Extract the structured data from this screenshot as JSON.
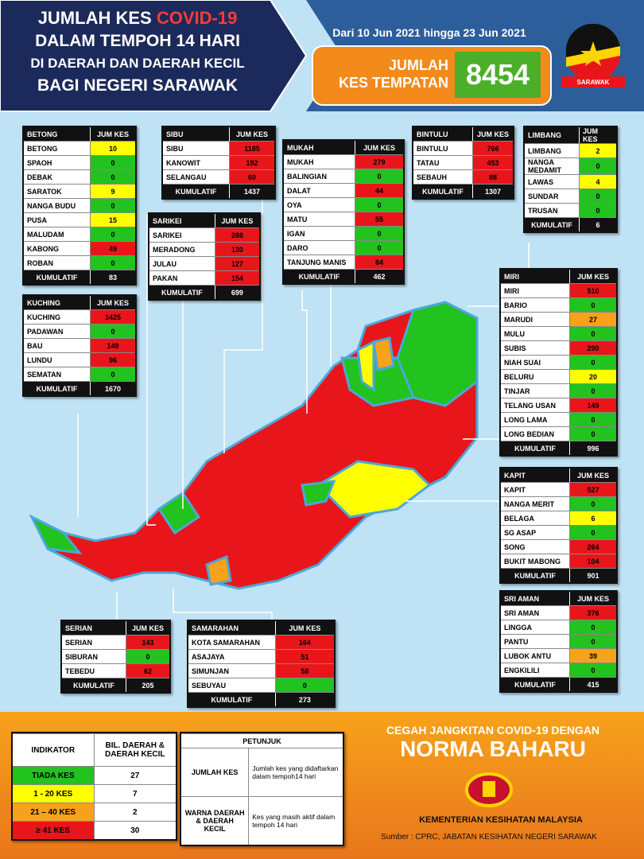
{
  "header": {
    "title_lines": [
      "JUMLAH KES",
      "COVID-19",
      "DALAM TEMPOH 14 HARI",
      "DI DAERAH DAN DAERAH KECIL",
      "BAGI NEGERI SARAWAK"
    ],
    "date_range": "Dari 10 Jun 2021 hingga 23 Jun 2021",
    "total_label_lines": [
      "JUMLAH",
      "KES TEMPATAN"
    ],
    "total": 8454,
    "logo_text": "SARAWAK"
  },
  "divisions": [
    {
      "name": "BETONG",
      "column": "JUM KES",
      "rows": [
        {
          "name": "BETONG",
          "cases": 10,
          "color": "#ffff00"
        },
        {
          "name": "SPAOH",
          "cases": 0,
          "color": "#22c21f"
        },
        {
          "name": "DEBAK",
          "cases": 0,
          "color": "#22c21f"
        },
        {
          "name": "SARATOK",
          "cases": 9,
          "color": "#ffff00"
        },
        {
          "name": "NANGA BUDU",
          "cases": 0,
          "color": "#22c21f"
        },
        {
          "name": "PUSA",
          "cases": 15,
          "color": "#ffff00"
        },
        {
          "name": "MALUDAM",
          "cases": 0,
          "color": "#22c21f"
        },
        {
          "name": "KABONG",
          "cases": 49,
          "color": "#e8161b"
        },
        {
          "name": "ROBAN",
          "cases": 0,
          "color": "#22c21f"
        }
      ],
      "total_label": "KUMULATIF",
      "total": 83
    },
    {
      "name": "SIBU",
      "column": "JUM KES",
      "rows": [
        {
          "name": "SIBU",
          "cases": 1185,
          "color": "#e8161b"
        },
        {
          "name": "KANOWIT",
          "cases": 192,
          "color": "#e8161b"
        },
        {
          "name": "SELANGAU",
          "cases": 60,
          "color": "#e8161b"
        }
      ],
      "total_label": "KUMULATIF",
      "total": 1437
    },
    {
      "name": "MUKAH",
      "column": "JUM KES",
      "rows": [
        {
          "name": "MUKAH",
          "cases": 279,
          "color": "#e8161b"
        },
        {
          "name": "BALINGIAN",
          "cases": 0,
          "color": "#22c21f"
        },
        {
          "name": "DALAT",
          "cases": 44,
          "color": "#e8161b"
        },
        {
          "name": "OYA",
          "cases": 0,
          "color": "#22c21f"
        },
        {
          "name": "MATU",
          "cases": 55,
          "color": "#e8161b"
        },
        {
          "name": "IGAN",
          "cases": 0,
          "color": "#22c21f"
        },
        {
          "name": "DARO",
          "cases": 0,
          "color": "#22c21f"
        },
        {
          "name": "TANJUNG MANIS",
          "cases": 84,
          "color": "#e8161b"
        }
      ],
      "total_label": "KUMULATIF",
      "total": 462
    },
    {
      "name": "BINTULU",
      "column": "JUM KES",
      "rows": [
        {
          "name": "BINTULU",
          "cases": 766,
          "color": "#e8161b"
        },
        {
          "name": "TATAU",
          "cases": 453,
          "color": "#e8161b"
        },
        {
          "name": "SEBAUH",
          "cases": 88,
          "color": "#e8161b"
        }
      ],
      "total_label": "KUMULATIF",
      "total": 1307
    },
    {
      "name": "LIMBANG",
      "column": "JUM KES",
      "rows": [
        {
          "name": "LIMBANG",
          "cases": 2,
          "color": "#ffff00"
        },
        {
          "name": "NANGA MEDAMIT",
          "cases": 0,
          "color": "#22c21f"
        },
        {
          "name": "LAWAS",
          "cases": 4,
          "color": "#ffff00"
        },
        {
          "name": "SUNDAR",
          "cases": 0,
          "color": "#22c21f"
        },
        {
          "name": "TRUSAN",
          "cases": 0,
          "color": "#22c21f"
        }
      ],
      "total_label": "KUMULATIF",
      "total": 6
    },
    {
      "name": "SARIKEI",
      "column": "JUM KES",
      "rows": [
        {
          "name": "SARIKEI",
          "cases": 288,
          "color": "#e8161b"
        },
        {
          "name": "MERADONG",
          "cases": 130,
          "color": "#e8161b"
        },
        {
          "name": "JULAU",
          "cases": 127,
          "color": "#e8161b"
        },
        {
          "name": "PAKAN",
          "cases": 154,
          "color": "#e8161b"
        }
      ],
      "total_label": "KUMULATIF",
      "total": 699
    },
    {
      "name": "KUCHING",
      "column": "JUM KES",
      "rows": [
        {
          "name": "KUCHING",
          "cases": 1425,
          "color": "#e8161b"
        },
        {
          "name": "PADAWAN",
          "cases": 0,
          "color": "#22c21f"
        },
        {
          "name": "BAU",
          "cases": 149,
          "color": "#e8161b"
        },
        {
          "name": "LUNDU",
          "cases": 96,
          "color": "#e8161b"
        },
        {
          "name": "SEMATAN",
          "cases": 0,
          "color": "#22c21f"
        }
      ],
      "total_label": "KUMULATIF",
      "total": 1670
    },
    {
      "name": "MIRI",
      "column": "JUM KES",
      "rows": [
        {
          "name": "MIRI",
          "cases": 510,
          "color": "#e8161b"
        },
        {
          "name": "BARIO",
          "cases": 0,
          "color": "#22c21f"
        },
        {
          "name": "MARUDI",
          "cases": 27,
          "color": "#f7a21b"
        },
        {
          "name": "MULU",
          "cases": 0,
          "color": "#22c21f"
        },
        {
          "name": "SUBIS",
          "cases": 290,
          "color": "#e8161b"
        },
        {
          "name": "NIAH SUAI",
          "cases": 0,
          "color": "#22c21f"
        },
        {
          "name": "BELURU",
          "cases": 20,
          "color": "#ffff00"
        },
        {
          "name": "TINJAR",
          "cases": 0,
          "color": "#22c21f"
        },
        {
          "name": "TELANG USAN",
          "cases": 149,
          "color": "#e8161b"
        },
        {
          "name": "LONG LAMA",
          "cases": 0,
          "color": "#22c21f"
        },
        {
          "name": "LONG BEDIAN",
          "cases": 0,
          "color": "#22c21f"
        }
      ],
      "total_label": "KUMULATIF",
      "total": 996
    },
    {
      "name": "KAPIT",
      "column": "JUM KES",
      "rows": [
        {
          "name": "KAPIT",
          "cases": 527,
          "color": "#e8161b"
        },
        {
          "name": "NANGA MERIT",
          "cases": 0,
          "color": "#22c21f"
        },
        {
          "name": "BELAGA",
          "cases": 6,
          "color": "#ffff00"
        },
        {
          "name": "SG ASAP",
          "cases": 0,
          "color": "#22c21f"
        },
        {
          "name": "SONG",
          "cases": 264,
          "color": "#e8161b"
        },
        {
          "name": "BUKIT MABONG",
          "cases": 104,
          "color": "#e8161b"
        }
      ],
      "total_label": "KUMULATIF",
      "total": 901
    },
    {
      "name": "SRI AMAN",
      "column": "JUM KES",
      "rows": [
        {
          "name": "SRI AMAN",
          "cases": 376,
          "color": "#e8161b"
        },
        {
          "name": "LINGGA",
          "cases": 0,
          "color": "#22c21f"
        },
        {
          "name": "PANTU",
          "cases": 0,
          "color": "#22c21f"
        },
        {
          "name": "LUBOK ANTU",
          "cases": 39,
          "color": "#f7a21b"
        },
        {
          "name": "ENGKILILI",
          "cases": 0,
          "color": "#22c21f"
        }
      ],
      "total_label": "KUMULATIF",
      "total": 415
    },
    {
      "name": "SERIAN",
      "column": "JUM KES",
      "rows": [
        {
          "name": "SERIAN",
          "cases": 143,
          "color": "#e8161b"
        },
        {
          "name": "SIBURAN",
          "cases": 0,
          "color": "#22c21f"
        },
        {
          "name": "TEBEDU",
          "cases": 62,
          "color": "#e8161b"
        }
      ],
      "total_label": "KUMULATIF",
      "total": 205
    },
    {
      "name": "SAMARAHAN",
      "column": "JUM KES",
      "rows": [
        {
          "name": "KOTA SAMARAHAN",
          "cases": 164,
          "color": "#e8161b"
        },
        {
          "name": "ASAJAYA",
          "cases": 51,
          "color": "#e8161b"
        },
        {
          "name": "SIMUNJAN",
          "cases": 58,
          "color": "#e8161b"
        },
        {
          "name": "SEBUYAU",
          "cases": 0,
          "color": "#22c21f"
        }
      ],
      "total_label": "KUMULATIF",
      "total": 273
    }
  ],
  "indicator": {
    "headers": [
      "INDIKATOR",
      "BIL. DAERAH & DAERAH KECIL"
    ],
    "rows": [
      {
        "label": "TIADA KES",
        "count": 27,
        "color": "#22c21f"
      },
      {
        "label": "1 - 20 KES",
        "count": 7,
        "color": "#ffff00"
      },
      {
        "label": "21 – 40 KES",
        "count": 2,
        "color": "#f7a21b"
      },
      {
        "label": "≥ 41 KES",
        "count": 30,
        "color": "#e8161b"
      }
    ]
  },
  "legend": {
    "title": "PETUNJUK",
    "rows": [
      {
        "term": "JUMLAH KES",
        "description": "Jumlah kes yang didaftarkan dalam tempoh14 hari"
      },
      {
        "term": "WARNA DAERAH & DAERAH KECIL",
        "description": "Kes yang masih aktif dalam tempoh 14 hari"
      }
    ]
  },
  "footer": {
    "slogan_lines": [
      "CEGAH JANGKITAN COVID-19 DENGAN",
      "NORMA BAHARU"
    ],
    "ministry": "KEMENTERIAN KESIHATAN MALAYSIA",
    "source": "Sumber : CPRC, JABATAN KESIHATAN NEGERI SARAWAK"
  }
}
